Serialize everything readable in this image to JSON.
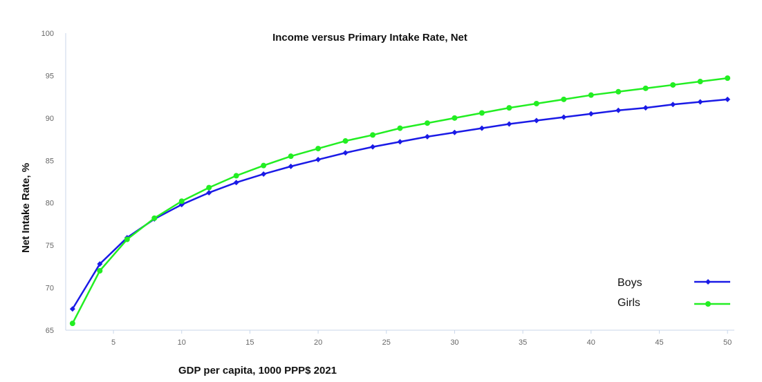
{
  "chart_data": {
    "type": "line",
    "title": "Income versus Primary Intake Rate, Net",
    "xlabel": "GDP per capita,  1000 PPP$ 2021",
    "ylabel": "Net  Intake Rate, %",
    "xlim": [
      1.5,
      50.5
    ],
    "ylim": [
      65,
      100
    ],
    "x_ticks": [
      5,
      10,
      15,
      20,
      25,
      30,
      35,
      40,
      45,
      50
    ],
    "y_ticks": [
      65,
      70,
      75,
      80,
      85,
      90,
      95,
      100
    ],
    "grid": false,
    "legend_position": "bottom-right",
    "x": [
      2,
      4,
      6,
      8,
      10,
      12,
      14,
      16,
      18,
      20,
      22,
      24,
      26,
      28,
      30,
      32,
      34,
      36,
      38,
      40,
      42,
      44,
      46,
      48,
      50
    ],
    "series": [
      {
        "name": "Boys",
        "color": "#1a1ae6",
        "marker": "diamond",
        "values": [
          67.5,
          72.8,
          75.9,
          78.1,
          79.8,
          81.2,
          82.4,
          83.4,
          84.3,
          85.1,
          85.9,
          86.6,
          87.2,
          87.8,
          88.3,
          88.8,
          89.3,
          89.7,
          90.1,
          90.5,
          90.9,
          91.2,
          91.6,
          91.9,
          92.2
        ]
      },
      {
        "name": "Girls",
        "color": "#22ee22",
        "marker": "circle",
        "values": [
          65.8,
          72.0,
          75.7,
          78.2,
          80.2,
          81.8,
          83.2,
          84.4,
          85.5,
          86.4,
          87.3,
          88.0,
          88.8,
          89.4,
          90.0,
          90.6,
          91.2,
          91.7,
          92.2,
          92.7,
          93.1,
          93.5,
          93.9,
          94.3,
          94.7
        ]
      }
    ]
  }
}
